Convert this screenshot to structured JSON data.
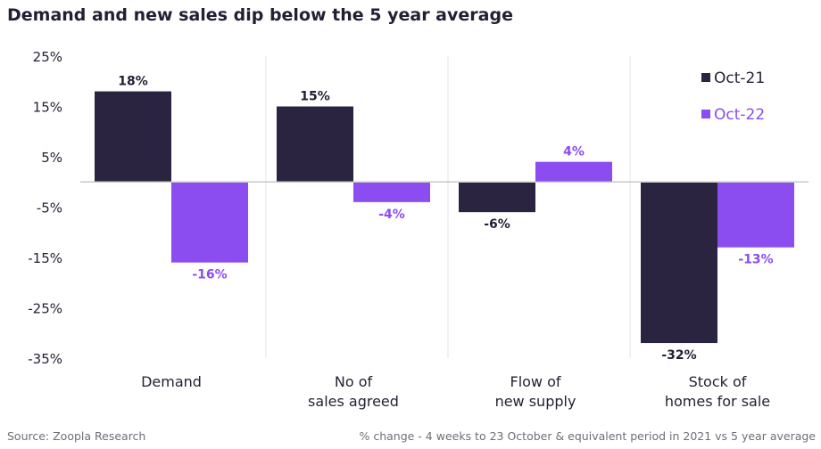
{
  "chart_data": {
    "type": "bar",
    "title": "Demand and new sales dip below the 5 year average",
    "categories": [
      [
        "Demand"
      ],
      [
        "No of",
        "sales agreed"
      ],
      [
        "Flow of",
        "new supply"
      ],
      [
        "Stock of",
        "homes for sale"
      ]
    ],
    "series": [
      {
        "name": "Oct-21",
        "color": "#2a2440",
        "values": [
          18,
          15,
          -6,
          -32
        ],
        "labels": [
          "18%",
          "15%",
          "-6%",
          "-32%"
        ]
      },
      {
        "name": "Oct-22",
        "color": "#8b4cf0",
        "values": [
          -16,
          -4,
          4,
          -13
        ],
        "labels": [
          "-16%",
          "-4%",
          "4%",
          "-13%"
        ]
      }
    ],
    "ylim": [
      -35,
      25
    ],
    "yticks": [
      25,
      15,
      5,
      -5,
      -15,
      -25,
      -35
    ],
    "ytick_labels": [
      "25%",
      "15%",
      "5%",
      "-5%",
      "-15%",
      "-25%",
      "-35%"
    ],
    "legend_position": "top-right"
  },
  "footer": {
    "source": "Source: Zoopla Research",
    "note": "% change - 4 weeks to 23 October & equivalent period in 2021 vs 5 year average"
  },
  "colors": {
    "axis_text": "#231f33",
    "gridline": "#e6e6ea",
    "zero_line": "#c8c8cc"
  }
}
